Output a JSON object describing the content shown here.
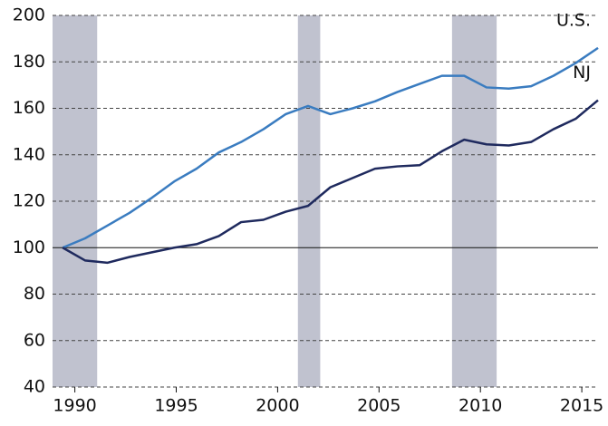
{
  "chart_data": {
    "type": "line",
    "x": [
      1989.4,
      1990.5,
      1991.6,
      1992.7,
      1993.8,
      1994.9,
      1996.0,
      1997.1,
      1998.2,
      1999.3,
      2000.4,
      2001.5,
      2002.6,
      2003.7,
      2004.8,
      2005.9,
      2007.0,
      2008.1,
      2009.2,
      2010.3,
      2011.4,
      2012.5,
      2013.6,
      2014.7,
      2015.8
    ],
    "series": [
      {
        "name": "U.S.",
        "color": "#3a7cc0",
        "values": [
          100,
          104,
          109.5,
          115,
          121.5,
          128.5,
          134,
          141,
          145.5,
          151,
          157.5,
          161,
          157.5,
          160,
          163,
          167,
          170.5,
          174,
          174,
          169,
          168.5,
          169.5,
          174,
          179.5,
          186
        ]
      },
      {
        "name": "NJ",
        "color": "#1f2a5e",
        "values": [
          100,
          94.5,
          93.5,
          96,
          98,
          100,
          101.5,
          105,
          111,
          112,
          115.5,
          118,
          126,
          130,
          134,
          135,
          135.5,
          141.5,
          146.5,
          144.5,
          144,
          145.5,
          151,
          155.5,
          163.5
        ]
      }
    ],
    "xlim": [
      1988.9,
      2015.8
    ],
    "xticks": [
      1990,
      1995,
      2000,
      2005,
      2010,
      2015
    ],
    "ylim": [
      40,
      200
    ],
    "yticks": [
      40,
      60,
      80,
      100,
      120,
      140,
      160,
      180,
      200
    ],
    "grid": true,
    "reference_line": 100,
    "shaded_ranges": [
      [
        1988.9,
        1991.1
      ],
      [
        2001.0,
        2002.1
      ],
      [
        2008.6,
        2010.8
      ]
    ],
    "shade_color": "#c0c2cf"
  }
}
